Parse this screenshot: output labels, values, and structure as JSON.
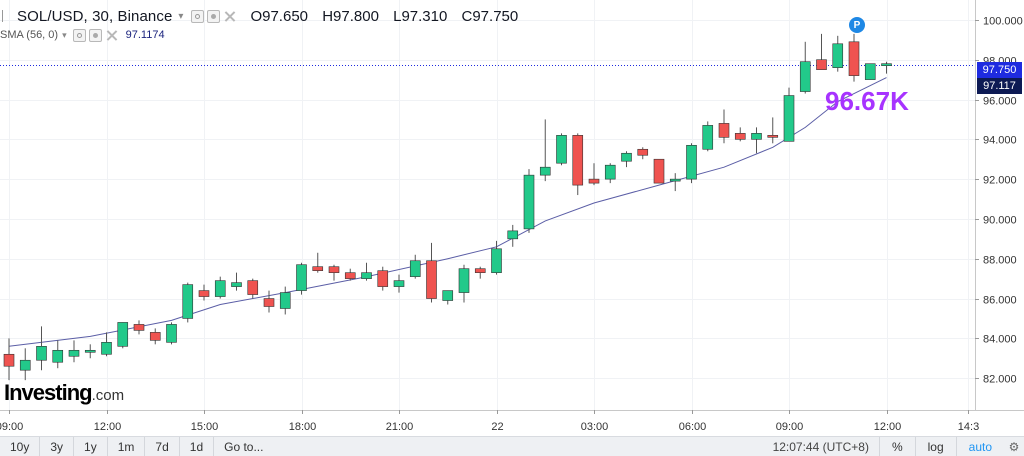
{
  "legend": {
    "symbol": "SOL/USD, 30, Binance",
    "ohlc": [
      {
        "k": "O",
        "v": "97.650"
      },
      {
        "k": "H",
        "v": "97.800"
      },
      {
        "k": "L",
        "v": "97.310"
      },
      {
        "k": "C",
        "v": "97.750"
      }
    ],
    "sma_label": "SMA (56, 0)",
    "sma_value": "97.1174",
    "icons": [
      "eye-icon",
      "gear-icon",
      "close-icon"
    ]
  },
  "logo": {
    "main": "Investing",
    "suffix": ".com"
  },
  "annotation": "96.67K",
  "badge": "P",
  "price_tags": {
    "last": "97.750",
    "sma": "97.117"
  },
  "bottom_bar": {
    "ranges": [
      "10y",
      "3y",
      "1y",
      "1m",
      "7d",
      "1d"
    ],
    "goto": "Go to...",
    "clock": "12:07:44 (UTC+8)",
    "percent": "%",
    "log": "log",
    "auto": "auto"
  },
  "colors": {
    "up": "#26a69a",
    "up_fill": "#22c98a",
    "down": "#ef5350",
    "sma": "#5b5ea6",
    "last_line": "#1e2be0"
  },
  "chart_data": {
    "type": "candlestick",
    "y_ticks": [
      "100.000",
      "98.000",
      "96.000",
      "94.000",
      "92.000",
      "90.000",
      "88.000",
      "86.000",
      "84.000",
      "82.000"
    ],
    "ylim": [
      80.4,
      101.0
    ],
    "x_ticks": [
      {
        "label": "09:00",
        "i": 0
      },
      {
        "label": "12:00",
        "i": 6
      },
      {
        "label": "15:00",
        "i": 12
      },
      {
        "label": "18:00",
        "i": 18
      },
      {
        "label": "21:00",
        "i": 24
      },
      {
        "label": "22",
        "i": 30
      },
      {
        "label": "03:00",
        "i": 36
      },
      {
        "label": "06:00",
        "i": 42
      },
      {
        "label": "09:00",
        "i": 48
      },
      {
        "label": "12:00",
        "i": 54
      },
      {
        "label": "14:3",
        "i": 59
      }
    ],
    "candles": [
      {
        "o": 83.2,
        "h": 84.0,
        "l": 81.9,
        "c": 82.6
      },
      {
        "o": 82.4,
        "h": 83.5,
        "l": 81.9,
        "c": 82.9
      },
      {
        "o": 82.9,
        "h": 84.6,
        "l": 82.4,
        "c": 83.6
      },
      {
        "o": 82.8,
        "h": 83.9,
        "l": 82.5,
        "c": 83.4
      },
      {
        "o": 83.1,
        "h": 83.9,
        "l": 82.8,
        "c": 83.4
      },
      {
        "o": 83.3,
        "h": 83.7,
        "l": 83.0,
        "c": 83.4
      },
      {
        "o": 83.2,
        "h": 84.3,
        "l": 83.1,
        "c": 83.8
      },
      {
        "o": 83.6,
        "h": 84.8,
        "l": 83.5,
        "c": 84.8
      },
      {
        "o": 84.7,
        "h": 84.9,
        "l": 84.2,
        "c": 84.4
      },
      {
        "o": 84.3,
        "h": 84.5,
        "l": 83.7,
        "c": 83.9
      },
      {
        "o": 83.8,
        "h": 84.8,
        "l": 83.7,
        "c": 84.7
      },
      {
        "o": 85.0,
        "h": 86.8,
        "l": 84.8,
        "c": 86.7
      },
      {
        "o": 86.4,
        "h": 86.7,
        "l": 85.9,
        "c": 86.1
      },
      {
        "o": 86.1,
        "h": 87.1,
        "l": 86.0,
        "c": 86.9
      },
      {
        "o": 86.6,
        "h": 87.3,
        "l": 86.4,
        "c": 86.8
      },
      {
        "o": 86.9,
        "h": 87.0,
        "l": 86.0,
        "c": 86.2
      },
      {
        "o": 86.0,
        "h": 86.4,
        "l": 85.3,
        "c": 85.6
      },
      {
        "o": 85.5,
        "h": 86.6,
        "l": 85.2,
        "c": 86.3
      },
      {
        "o": 86.4,
        "h": 87.8,
        "l": 86.2,
        "c": 87.7
      },
      {
        "o": 87.6,
        "h": 88.3,
        "l": 87.3,
        "c": 87.4
      },
      {
        "o": 87.6,
        "h": 87.7,
        "l": 86.9,
        "c": 87.3
      },
      {
        "o": 87.3,
        "h": 87.5,
        "l": 86.9,
        "c": 87.0
      },
      {
        "o": 87.0,
        "h": 87.8,
        "l": 86.9,
        "c": 87.3
      },
      {
        "o": 87.4,
        "h": 87.6,
        "l": 86.4,
        "c": 86.6
      },
      {
        "o": 86.6,
        "h": 87.2,
        "l": 86.3,
        "c": 86.9
      },
      {
        "o": 87.1,
        "h": 88.2,
        "l": 87.0,
        "c": 87.9
      },
      {
        "o": 87.9,
        "h": 88.8,
        "l": 85.8,
        "c": 86.0
      },
      {
        "o": 85.9,
        "h": 86.4,
        "l": 85.7,
        "c": 86.4
      },
      {
        "o": 86.3,
        "h": 87.7,
        "l": 85.8,
        "c": 87.5
      },
      {
        "o": 87.5,
        "h": 87.6,
        "l": 87.0,
        "c": 87.3
      },
      {
        "o": 87.3,
        "h": 88.9,
        "l": 87.2,
        "c": 88.5
      },
      {
        "o": 89.0,
        "h": 89.7,
        "l": 88.6,
        "c": 89.4
      },
      {
        "o": 89.5,
        "h": 92.5,
        "l": 89.3,
        "c": 92.2
      },
      {
        "o": 92.2,
        "h": 95.0,
        "l": 91.9,
        "c": 92.6
      },
      {
        "o": 92.8,
        "h": 94.3,
        "l": 92.7,
        "c": 94.2
      },
      {
        "o": 94.2,
        "h": 94.3,
        "l": 91.2,
        "c": 91.7
      },
      {
        "o": 92.0,
        "h": 92.8,
        "l": 91.7,
        "c": 91.8
      },
      {
        "o": 92.0,
        "h": 92.8,
        "l": 91.8,
        "c": 92.7
      },
      {
        "o": 92.9,
        "h": 93.4,
        "l": 92.6,
        "c": 93.3
      },
      {
        "o": 93.5,
        "h": 93.6,
        "l": 93.0,
        "c": 93.2
      },
      {
        "o": 93.0,
        "h": 93.0,
        "l": 91.8,
        "c": 91.8
      },
      {
        "o": 91.9,
        "h": 92.3,
        "l": 91.4,
        "c": 92.0
      },
      {
        "o": 92.0,
        "h": 93.8,
        "l": 91.8,
        "c": 93.7
      },
      {
        "o": 93.5,
        "h": 94.9,
        "l": 93.4,
        "c": 94.7
      },
      {
        "o": 94.8,
        "h": 95.5,
        "l": 93.8,
        "c": 94.1
      },
      {
        "o": 94.3,
        "h": 94.6,
        "l": 93.9,
        "c": 94.0
      },
      {
        "o": 94.0,
        "h": 94.6,
        "l": 93.3,
        "c": 94.3
      },
      {
        "o": 94.2,
        "h": 95.1,
        "l": 93.8,
        "c": 94.1
      },
      {
        "o": 93.9,
        "h": 96.6,
        "l": 93.9,
        "c": 96.2
      },
      {
        "o": 96.4,
        "h": 98.9,
        "l": 96.3,
        "c": 97.9
      },
      {
        "o": 98.0,
        "h": 99.3,
        "l": 97.5,
        "c": 97.5
      },
      {
        "o": 97.6,
        "h": 99.2,
        "l": 97.4,
        "c": 98.8
      },
      {
        "o": 98.9,
        "h": 99.3,
        "l": 96.9,
        "c": 97.2
      },
      {
        "o": 97.0,
        "h": 97.8,
        "l": 97.0,
        "c": 97.8
      },
      {
        "o": 97.7,
        "h": 97.9,
        "l": 97.3,
        "c": 97.8
      }
    ],
    "sma": [
      {
        "i": 0,
        "v": 83.6
      },
      {
        "i": 5,
        "v": 84.1
      },
      {
        "i": 10,
        "v": 84.9
      },
      {
        "i": 13,
        "v": 85.7
      },
      {
        "i": 17,
        "v": 86.3
      },
      {
        "i": 22,
        "v": 87.1
      },
      {
        "i": 27,
        "v": 88.0
      },
      {
        "i": 30,
        "v": 88.6
      },
      {
        "i": 33,
        "v": 89.9
      },
      {
        "i": 36,
        "v": 90.8
      },
      {
        "i": 40,
        "v": 91.7
      },
      {
        "i": 44,
        "v": 92.6
      },
      {
        "i": 47,
        "v": 93.6
      },
      {
        "i": 49,
        "v": 94.6
      },
      {
        "i": 51,
        "v": 95.9
      },
      {
        "i": 53,
        "v": 96.7
      },
      {
        "i": 54,
        "v": 97.1
      }
    ],
    "last_price": 97.75
  }
}
